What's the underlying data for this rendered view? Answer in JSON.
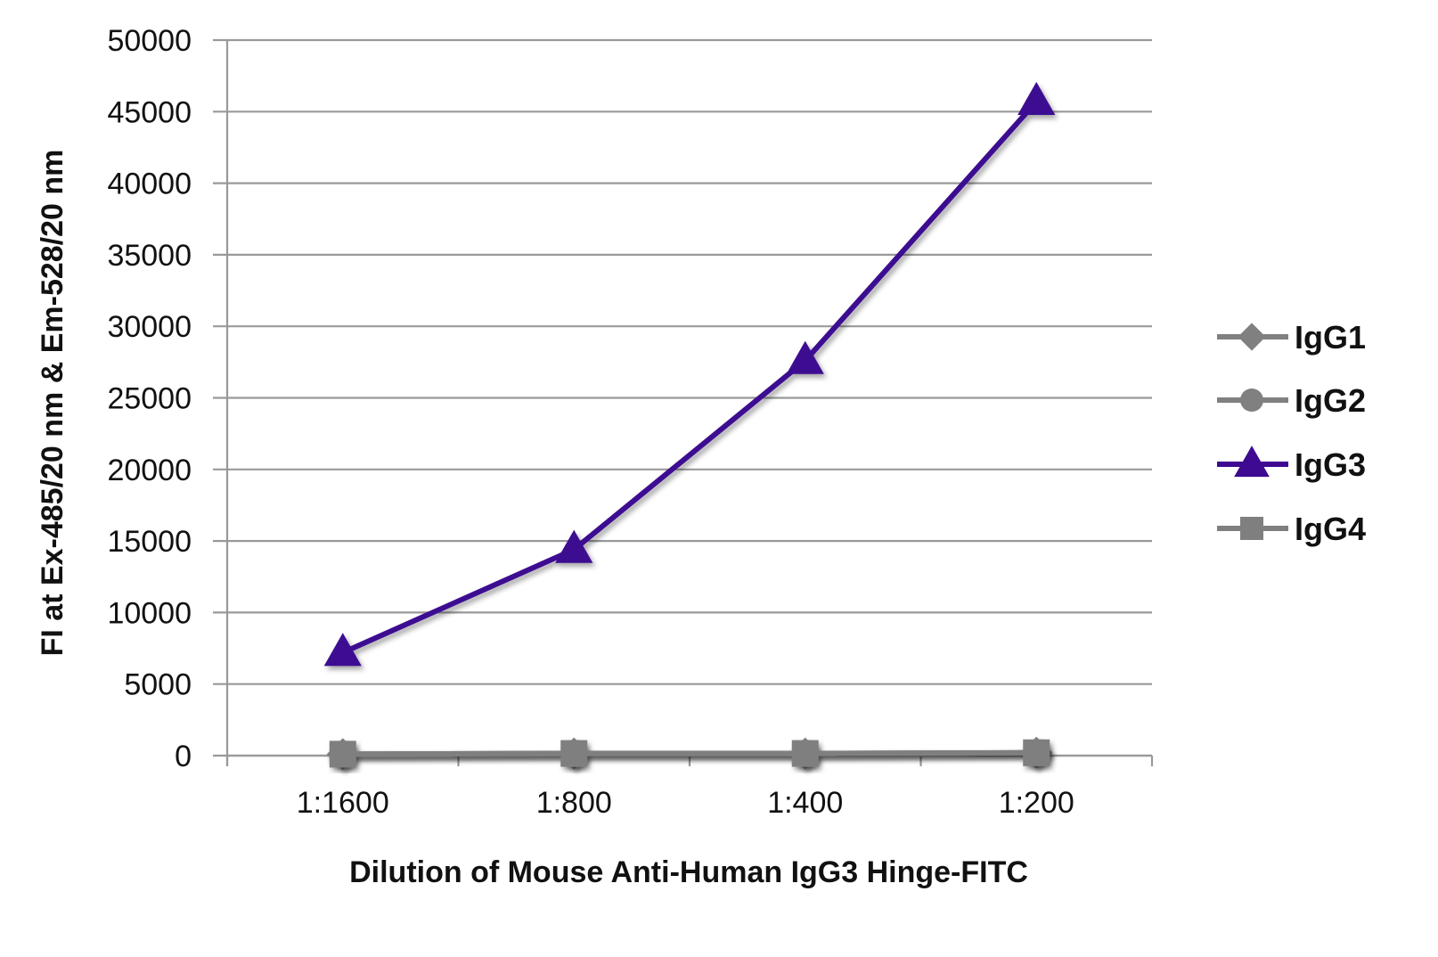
{
  "chart_data": {
    "type": "line",
    "title": "",
    "xlabel": "Dilution of Mouse Anti-Human IgG3 Hinge-FITC",
    "ylabel": "FI at Ex-485/20 nm & Em-528/20 nm",
    "categories": [
      "1:1600",
      "1:800",
      "1:400",
      "1:200"
    ],
    "ylim": [
      0,
      50000
    ],
    "yticks": [
      0,
      5000,
      10000,
      15000,
      20000,
      25000,
      30000,
      35000,
      40000,
      45000,
      50000
    ],
    "grid": "horizontal",
    "legend_position": "right",
    "series": [
      {
        "name": "IgG1",
        "values": [
          100,
          150,
          150,
          200
        ],
        "color": "#808080",
        "marker": "diamond"
      },
      {
        "name": "IgG2",
        "values": [
          100,
          150,
          150,
          200
        ],
        "color": "#808080",
        "marker": "circle"
      },
      {
        "name": "IgG3",
        "values": [
          7200,
          14400,
          27600,
          45700
        ],
        "color": "#3d0a91",
        "marker": "triangle"
      },
      {
        "name": "IgG4",
        "values": [
          100,
          150,
          150,
          200
        ],
        "color": "#7f7f7f",
        "marker": "square"
      }
    ]
  }
}
